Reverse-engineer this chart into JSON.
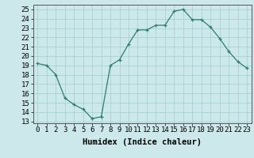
{
  "x": [
    0,
    1,
    2,
    3,
    4,
    5,
    6,
    7,
    8,
    9,
    10,
    11,
    12,
    13,
    14,
    15,
    16,
    17,
    18,
    19,
    20,
    21,
    22,
    23
  ],
  "y": [
    19.2,
    19.0,
    18.0,
    15.5,
    14.8,
    14.3,
    13.3,
    13.5,
    19.0,
    19.6,
    21.3,
    22.8,
    22.8,
    23.3,
    23.3,
    24.8,
    25.0,
    23.9,
    23.9,
    23.1,
    21.9,
    20.5,
    19.4,
    18.7
  ],
  "line_color": "#2e7d6e",
  "marker": "+",
  "bg_color": "#cce8ea",
  "grid_color": "#9ecece",
  "xlabel": "Humidex (Indice chaleur)",
  "ylabel_ticks": [
    13,
    14,
    15,
    16,
    17,
    18,
    19,
    20,
    21,
    22,
    23,
    24,
    25
  ],
  "xlim": [
    -0.5,
    23.5
  ],
  "ylim": [
    12.8,
    25.5
  ],
  "tick_fontsize": 6.5,
  "label_fontsize": 7.5
}
